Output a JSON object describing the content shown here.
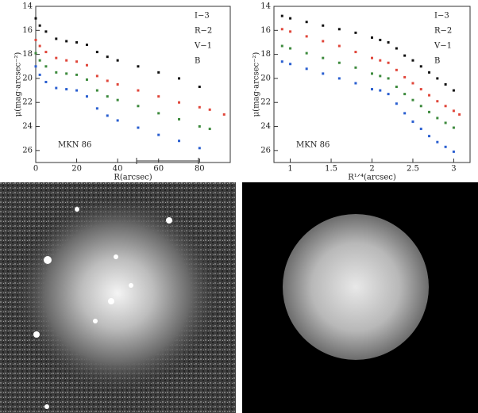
{
  "chart_data": [
    {
      "type": "scatter",
      "annotation": "MKN 86",
      "xlabel": "R(arcsec)",
      "ylabel": "μ(mag·arcsec⁻²)",
      "x": [
        0,
        2,
        5,
        10,
        15,
        20,
        25,
        30,
        35,
        40,
        50,
        60,
        70,
        80,
        85,
        92
      ],
      "xlim": [
        0,
        95
      ],
      "xticks": [
        0,
        20,
        40,
        60,
        80
      ],
      "ylim": [
        27,
        14
      ],
      "yticks": [
        14,
        16,
        18,
        20,
        22,
        24,
        26
      ],
      "series": [
        {
          "name": "I−3",
          "color": "#111111",
          "values": [
            15.0,
            15.6,
            16.1,
            16.7,
            16.9,
            17.0,
            17.2,
            17.8,
            18.2,
            18.5,
            19.0,
            19.5,
            20.0,
            20.7,
            null,
            null
          ]
        },
        {
          "name": "R−2",
          "color": "#e0463a",
          "values": [
            16.8,
            17.3,
            17.8,
            18.3,
            18.5,
            18.6,
            18.9,
            19.8,
            20.2,
            20.5,
            21.0,
            21.5,
            22.0,
            22.4,
            22.6,
            23.0
          ]
        },
        {
          "name": "V−1",
          "color": "#3d8a3d",
          "values": [
            17.9,
            18.5,
            19.0,
            19.5,
            19.6,
            19.7,
            20.1,
            21.0,
            21.5,
            21.8,
            22.3,
            22.9,
            23.4,
            24.0,
            24.2,
            null
          ]
        },
        {
          "name": "B",
          "color": "#2a5fd0",
          "values": [
            19.0,
            19.7,
            20.3,
            20.8,
            20.9,
            21.0,
            21.5,
            22.5,
            23.1,
            23.5,
            24.1,
            24.7,
            25.2,
            25.8,
            null,
            null
          ]
        }
      ]
    },
    {
      "type": "scatter",
      "annotation": "MKN 86",
      "xlabel": "R¹ᐟ⁴(arcsec)",
      "ylabel": "μ(mag·arcsec⁻²)",
      "x": [
        0.9,
        1.0,
        1.2,
        1.4,
        1.6,
        1.8,
        2.0,
        2.1,
        2.2,
        2.3,
        2.4,
        2.5,
        2.6,
        2.7,
        2.8,
        2.9,
        3.0,
        3.07
      ],
      "xlim": [
        0.8,
        3.2
      ],
      "xticks": [
        1,
        1.5,
        2,
        2.5,
        3
      ],
      "ylim": [
        27,
        14
      ],
      "yticks": [
        14,
        16,
        18,
        20,
        22,
        24,
        26
      ],
      "series": [
        {
          "name": "I−3",
          "color": "#111111",
          "values": [
            14.8,
            15.0,
            15.3,
            15.6,
            15.9,
            16.2,
            16.6,
            16.8,
            17.0,
            17.5,
            18.1,
            18.5,
            19.0,
            19.5,
            20.0,
            20.5,
            21.0,
            null
          ]
        },
        {
          "name": "R−2",
          "color": "#e0463a",
          "values": [
            15.9,
            16.1,
            16.5,
            16.9,
            17.3,
            17.8,
            18.3,
            18.5,
            18.7,
            19.3,
            19.9,
            20.4,
            20.9,
            21.4,
            21.9,
            22.3,
            22.7,
            23.0
          ]
        },
        {
          "name": "V−1",
          "color": "#3d8a3d",
          "values": [
            17.3,
            17.5,
            17.9,
            18.3,
            18.7,
            19.1,
            19.6,
            19.8,
            20.0,
            20.7,
            21.3,
            21.8,
            22.3,
            22.8,
            23.3,
            23.7,
            24.1,
            null
          ]
        },
        {
          "name": "B",
          "color": "#2a5fd0",
          "values": [
            18.6,
            18.8,
            19.2,
            19.6,
            20.0,
            20.4,
            20.9,
            21.0,
            21.3,
            22.1,
            22.9,
            23.6,
            24.2,
            24.8,
            25.3,
            25.7,
            26.1,
            null
          ]
        }
      ]
    }
  ]
}
